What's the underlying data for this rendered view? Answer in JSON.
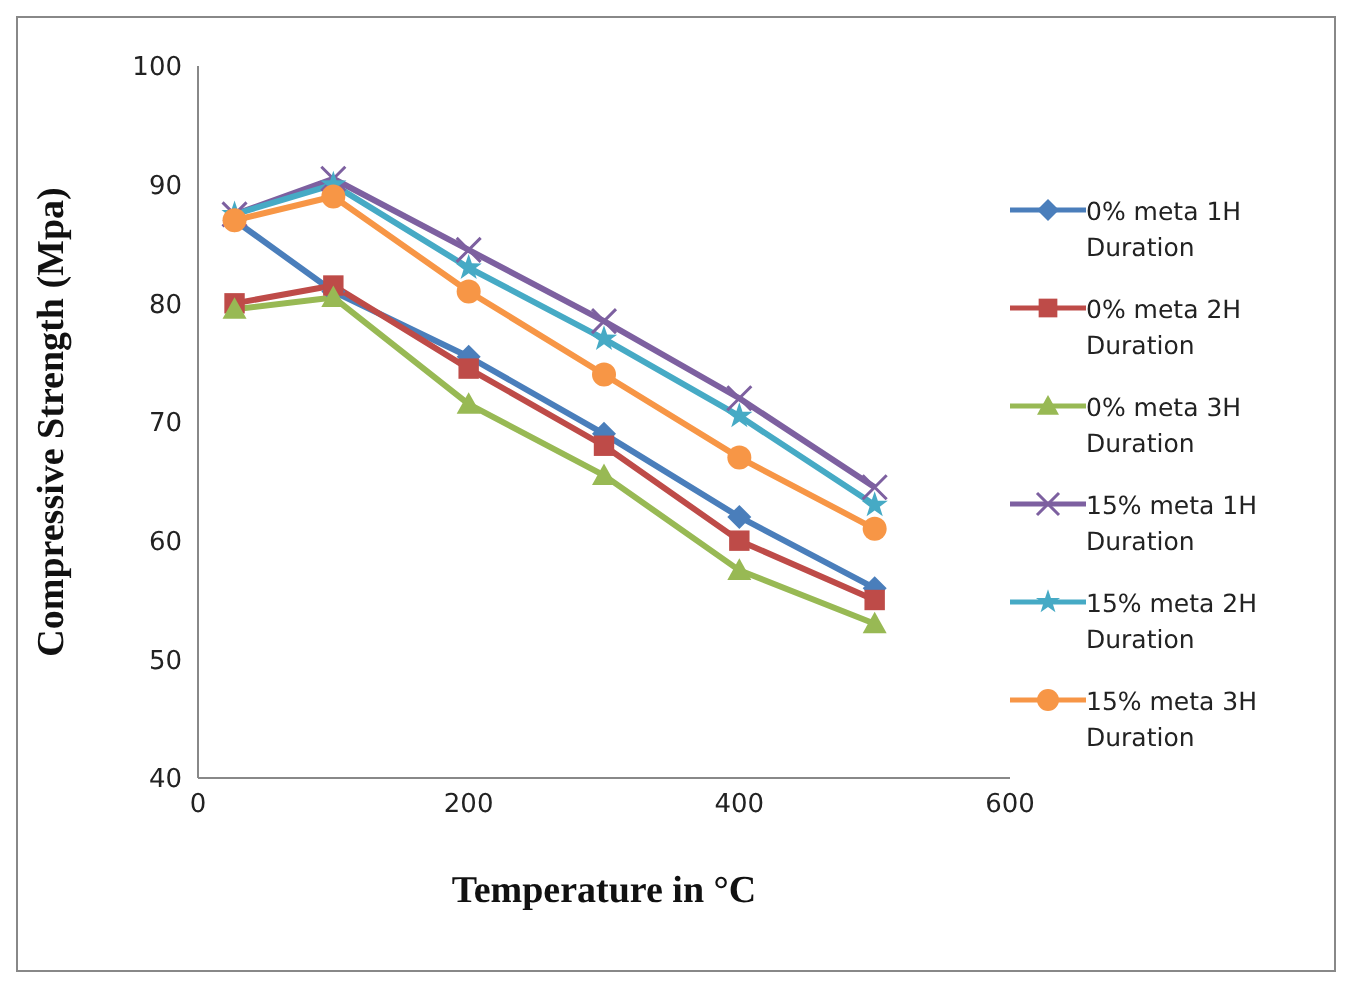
{
  "chart_data": {
    "type": "line",
    "xlabel": "Temperature in °C",
    "ylabel": "Compressive Strength (Mpa)",
    "x": [
      27,
      100,
      200,
      300,
      400,
      500
    ],
    "xlim": [
      0,
      600
    ],
    "xticks": [
      0,
      200,
      400,
      600
    ],
    "ylim": [
      40,
      100
    ],
    "yticks": [
      40,
      50,
      60,
      70,
      80,
      90,
      100
    ],
    "grid": false,
    "legend": "right",
    "series": [
      {
        "name": "0% meta 1H Duration",
        "color": "#4a7ebb",
        "marker": "diamond",
        "values": [
          87,
          81,
          75.5,
          69,
          62,
          56
        ]
      },
      {
        "name": "0% meta 2H Duration",
        "color": "#be4b48",
        "marker": "square",
        "values": [
          80,
          81.5,
          74.5,
          68,
          60,
          55
        ]
      },
      {
        "name": "0% meta 3H Duration",
        "color": "#98b954",
        "marker": "triangle",
        "values": [
          79.5,
          80.5,
          71.5,
          65.5,
          57.5,
          53
        ]
      },
      {
        "name": "15% meta 1H Duration",
        "color": "#7d60a0",
        "marker": "cross",
        "values": [
          87.5,
          90.5,
          84.5,
          78.5,
          72,
          64.5
        ]
      },
      {
        "name": "15% meta 2H Duration",
        "color": "#46aac5",
        "marker": "star",
        "values": [
          87.5,
          90,
          83,
          77,
          70.5,
          63
        ]
      },
      {
        "name": "15% meta 3H Duration",
        "color": "#f79646",
        "marker": "circle",
        "values": [
          87,
          89,
          81,
          74,
          67,
          61
        ]
      }
    ]
  }
}
